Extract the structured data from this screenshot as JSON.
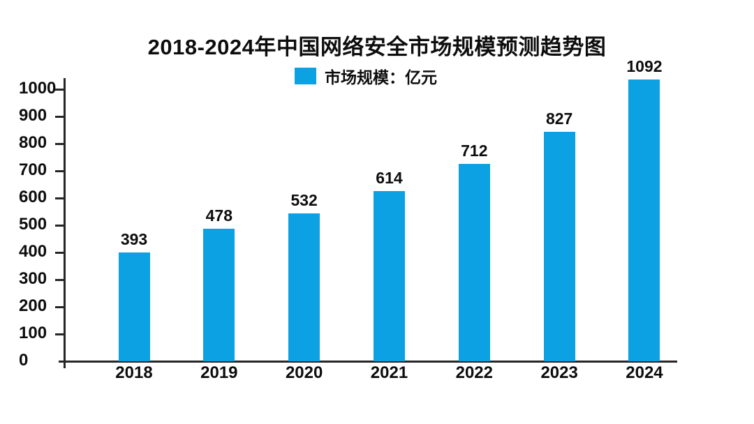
{
  "title": "2018-2024年中国网络安全市场规模预测趋势图",
  "legend": {
    "label": "市场规模：亿元"
  },
  "colors": {
    "bar": "#0ba1e2",
    "axis": "#262626",
    "text": "#0d0d0d",
    "background": "#ffffff"
  },
  "chart_data": {
    "type": "bar",
    "title": "2018-2024年中国网络安全市场规模预测趋势图",
    "series_name": "市场规模",
    "unit": "亿元",
    "categories": [
      "2018",
      "2019",
      "2020",
      "2021",
      "2022",
      "2023",
      "2024"
    ],
    "values": [
      393,
      478,
      532,
      614,
      712,
      827,
      1092
    ],
    "xlabel": "",
    "ylabel": "",
    "ylim": [
      0,
      1000
    ],
    "yticks": [
      0,
      100,
      200,
      300,
      400,
      500,
      600,
      700,
      800,
      900,
      1000
    ],
    "grid": false,
    "legend_position": "top-center",
    "bar_labels": true
  }
}
